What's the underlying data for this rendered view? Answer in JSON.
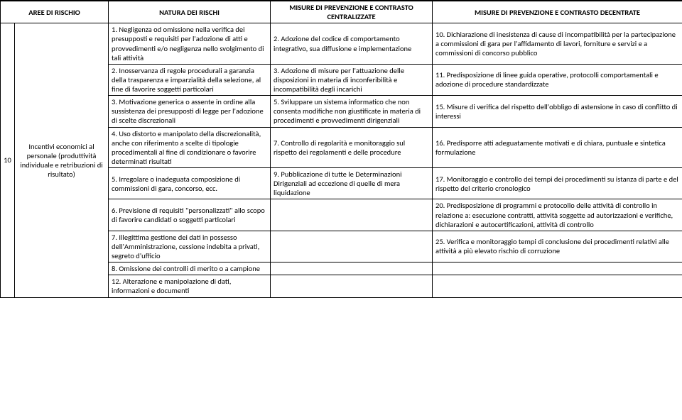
{
  "headers": {
    "aree": "AREE DI RISCHIO",
    "natura": "NATURA DEI RISCHI",
    "centralizzate": "MISURE DI PREVENZIONE E CONTRASTO CENTRALIZZATE",
    "decentrate": "MISURE DI PREVENZIONE E CONTRASTO  DECENTRATE"
  },
  "row_number": "10",
  "area_text": "Incentivi economici al personale (produttività individuale e retribuzioni di risultato)",
  "natura": {
    "r1": "1. Negligenza od omissione nella verifica dei presupposti e requisiti per l'adozione di atti e provvedimenti e/o negligenza nello svolgimento di tali attività",
    "r2": "2. Inosservanza di regole procedurali a garanzia della trasparenza e imparzialità della selezione, al fine di favorire soggetti particolari",
    "r3": "3. Motivazione generica o assente in ordine alla sussistenza dei presupposti di legge per l'adozione di scelte discrezionali",
    "r4": "4. Uso distorto e manipolato della discrezionalità, anche con riferimento a scelte di tipologie procedimentali al fine di condizionare o favorire determinati risultati",
    "r5": "5. Irregolare o inadeguata composizione di commissioni di gara, concorso, ecc.",
    "r6": "6. Previsione di requisiti \"personalizzati\" allo scopo di favorire candidati o soggetti particolari",
    "r7": "7. Illegittima gestione dei dati in possesso dell'Amministrazione, cessione indebita a privati, segreto d'ufficio",
    "r8": "8. Omissione dei controlli di merito o a campione",
    "r12": "12. Alterazione e manipolazione di dati, informazioni e documenti"
  },
  "centralizzate": {
    "r1": "2. Adozione del codice di comportamento integrativo, sua diffusione e implementazione",
    "r2": "3. Adozione di misure per l'attuazione delle disposizioni in materia di inconferibilità e incompatibilità degli incarichi",
    "r3": "5. Sviluppare un sistema informatico che non consenta modifiche non giustificate in materia di procedimenti e provvedimenti dirigenziali",
    "r4": "7. Controllo di regolarità e monitoraggio sul rispetto dei regolamenti e delle procedure",
    "r5": "9. Pubblicazione di tutte le Determinazioni Dirigenziali ad eccezione di quelle di mera liquidazione"
  },
  "decentrate": {
    "r1": "10. Dichiarazione di inesistenza di cause di incompatibilità per la partecipazione a commissioni di gara per l'affidamento di lavori, forniture e servizi e a commissioni di concorso pubblico",
    "r2": "11. Predisposizione di linee guida operative, protocolli comportamentali e adozione di procedure standardizzate",
    "r3": "15. Misure di verifica del rispetto dell'obbligo di astensione in caso di conflitto di interessi",
    "r4": "16. Predisporre atti adeguatamente motivati e di chiara, puntuale e sintetica formulazione",
    "r5": "17. Monitoraggio e controllo dei tempi dei procedimenti su istanza di parte e del rispetto del criterio cronologico",
    "r6": "20. Predisposizione di programmi e protocollo delle attività di controllo in relazione a: esecuzione contratti, attività soggette ad autorizzazioni e verifiche, dichiarazioni e autocertificazioni, attività di controllo",
    "r7": "25. Verifica e monitoraggio tempi di conclusione dei procedimenti relativi alle attività a più elevato rischio di corruzione"
  },
  "colors": {
    "background": "#ffffff",
    "border": "#000000",
    "text": "#000000"
  },
  "typography": {
    "font_family": "Calibri",
    "font_size_pt": 8,
    "header_weight": "bold"
  }
}
